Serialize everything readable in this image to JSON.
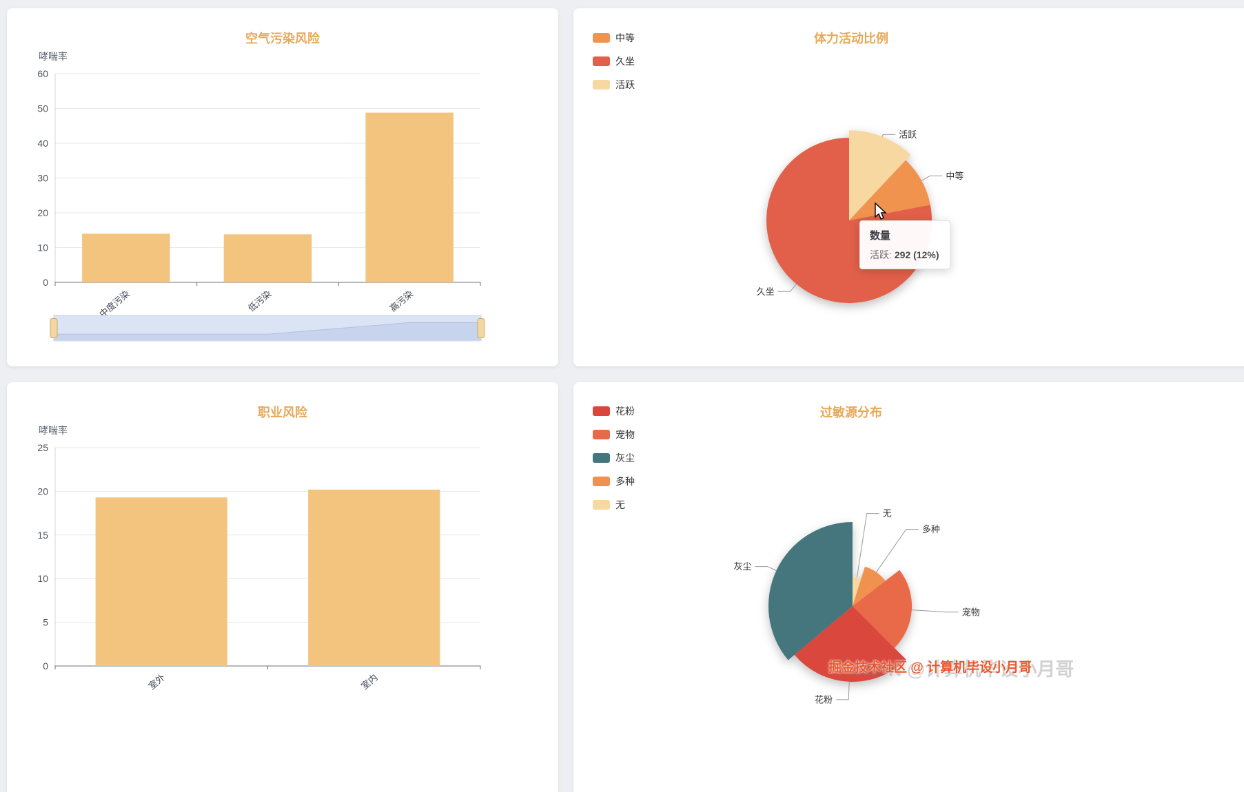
{
  "colors": {
    "page_bg": "#edeff2",
    "panel_bg": "#ffffff",
    "title": "#e7a958",
    "bar": "#f2c47e",
    "axis_line": "#6e7079",
    "grid_line": "#e4e7ec",
    "tick_text": "#4e545e",
    "label_text": "#3f4654",
    "legend_text": "#333333",
    "pie_label_line": "#999999",
    "pie_label_text": "#333333"
  },
  "watermark": {
    "ghost_text": "CSDN @计算机毕设小月哥",
    "front_text": "掘金技术社区 @ 计算机毕设小月哥"
  },
  "chart_data": [
    {
      "type": "bar",
      "title": "空气污染风险",
      "ylabel": "哮喘率",
      "categories": [
        "中度污染",
        "低污染",
        "高污染"
      ],
      "values": [
        14,
        13.8,
        48.8
      ],
      "ylim": [
        0,
        60
      ],
      "yticks": [
        0,
        10,
        20,
        30,
        40,
        50,
        60
      ],
      "grid": true,
      "legend_position": "none",
      "datazoom": {
        "enabled": true,
        "range": "全选",
        "track_fill": "#eef1f8",
        "track_border": "#ccd6e8",
        "area_fill": "#d3dcf0",
        "area_line": "#b2c0e0",
        "selection_fill": "#aec2e8",
        "handle_fill": "#f3d6a0",
        "handle_border": "#c9a96e"
      }
    },
    {
      "type": "pie",
      "title": "体力活动比例",
      "legend_position": "top-left",
      "legend": [
        "中等",
        "久坐",
        "活跃"
      ],
      "series": [
        {
          "name": "活跃",
          "value": 292,
          "color": "#f6d8a0",
          "hovered": true
        },
        {
          "name": "中等",
          "value": 243,
          "color": "#ef9350"
        },
        {
          "name": "久坐",
          "value": 1898,
          "color": "#e2604a"
        }
      ],
      "tooltip": {
        "series_label": "数量",
        "item_label": "活跃:",
        "item_value": "292 (12%)"
      }
    },
    {
      "type": "bar",
      "title": "职业风险",
      "ylabel": "哮喘率",
      "categories": [
        "室外",
        "室内"
      ],
      "values": [
        19.3,
        20.2
      ],
      "ylim": [
        0,
        25
      ],
      "yticks": [
        0,
        5,
        10,
        15,
        20,
        25
      ],
      "grid": true,
      "legend_position": "none",
      "datazoom": null
    },
    {
      "type": "pie",
      "rose": true,
      "title": "过敏源分布",
      "legend_position": "top-left",
      "legend": [
        "花粉",
        "宠物",
        "灰尘",
        "多种",
        "无"
      ],
      "series": [
        {
          "name": "无",
          "value": 118,
          "color": "#f6d8a0",
          "r": 42
        },
        {
          "name": "多种",
          "value": 236,
          "color": "#f0914f",
          "r": 60
        },
        {
          "name": "宠物",
          "value": 557,
          "color": "#e86a4a",
          "r": 86
        },
        {
          "name": "花粉",
          "value": 641,
          "color": "#d9473c",
          "r": 110
        },
        {
          "name": "灰尘",
          "value": 878,
          "color": "#44767e",
          "r": 122
        }
      ]
    }
  ]
}
